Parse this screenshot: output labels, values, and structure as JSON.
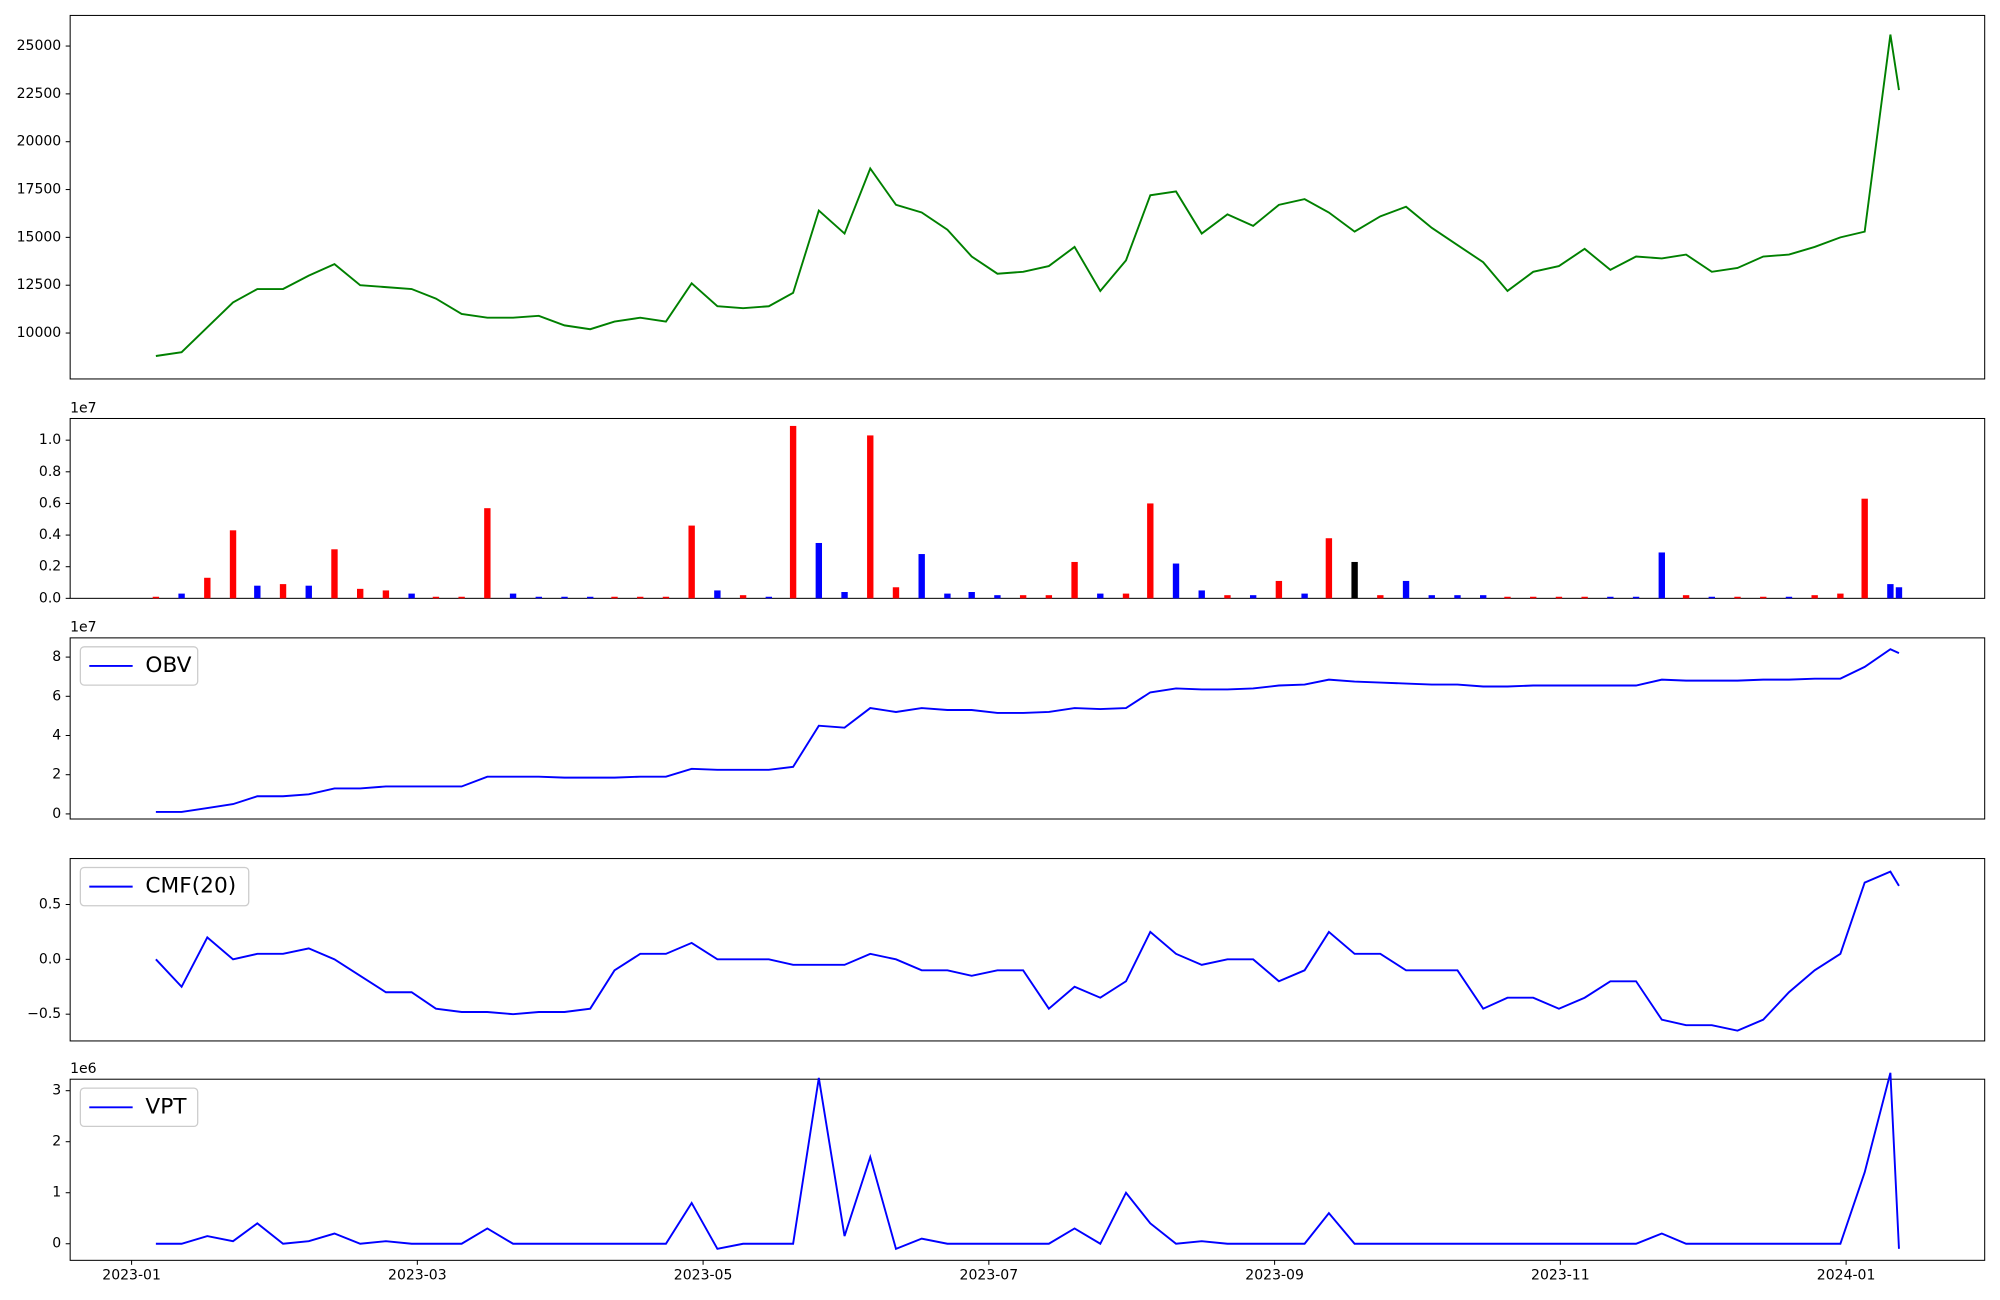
{
  "chart_data": [
    {
      "type": "line",
      "xlim": [
        -0.43,
        12.97
      ],
      "ylim": [
        7600,
        26600
      ],
      "yticks": [
        10000,
        12500,
        15000,
        17500,
        20000,
        22500,
        25000
      ],
      "x": [
        0.17,
        0.35,
        0.53,
        0.71,
        0.88,
        1.06,
        1.24,
        1.42,
        1.6,
        1.78,
        1.96,
        2.13,
        2.31,
        2.49,
        2.67,
        2.85,
        3.03,
        3.21,
        3.38,
        3.56,
        3.74,
        3.92,
        4.1,
        4.28,
        4.46,
        4.63,
        4.81,
        4.99,
        5.17,
        5.35,
        5.53,
        5.71,
        5.88,
        6.06,
        6.24,
        6.42,
        6.6,
        6.78,
        6.96,
        7.13,
        7.31,
        7.49,
        7.67,
        7.85,
        8.03,
        8.21,
        8.38,
        8.56,
        8.74,
        8.92,
        9.1,
        9.28,
        9.46,
        9.63,
        9.81,
        9.99,
        10.17,
        10.35,
        10.53,
        10.71,
        10.88,
        11.06,
        11.24,
        11.42,
        11.6,
        11.78,
        11.96,
        12.13,
        12.31,
        12.37
      ],
      "series": [
        {
          "color": "green",
          "values": [
            8800,
            9000,
            10300,
            11600,
            12300,
            12300,
            13000,
            13600,
            12500,
            12400,
            12300,
            11800,
            11000,
            10800,
            10800,
            10900,
            10400,
            10200,
            10600,
            10800,
            10600,
            12600,
            11400,
            11300,
            11400,
            12100,
            16400,
            15200,
            18600,
            16700,
            16300,
            15400,
            14000,
            13100,
            13200,
            13500,
            14500,
            12200,
            13800,
            17200,
            17400,
            15200,
            16200,
            15600,
            16700,
            17000,
            16300,
            15300,
            16100,
            16600,
            15500,
            14600,
            13700,
            12200,
            13200,
            13500,
            14400,
            13300,
            14000,
            13900,
            14100,
            13200,
            13400,
            14000,
            14100,
            14500,
            15000,
            15300,
            25600,
            22700
          ]
        }
      ]
    },
    {
      "type": "bar",
      "xlim": [
        -0.43,
        12.97
      ],
      "ylim": [
        0,
        11370000
      ],
      "offset_label": "1e7",
      "yticks": [
        {
          "value": 0,
          "label": "0.0"
        },
        {
          "value": 2000000,
          "label": "0.2"
        },
        {
          "value": 4000000,
          "label": "0.4"
        },
        {
          "value": 6000000,
          "label": "0.6"
        },
        {
          "value": 8000000,
          "label": "0.8"
        },
        {
          "value": 10000000,
          "label": "1.0"
        }
      ],
      "x": [
        0.17,
        0.35,
        0.53,
        0.71,
        0.88,
        1.06,
        1.24,
        1.42,
        1.6,
        1.78,
        1.96,
        2.13,
        2.31,
        2.49,
        2.67,
        2.85,
        3.03,
        3.21,
        3.38,
        3.56,
        3.74,
        3.92,
        4.1,
        4.28,
        4.46,
        4.63,
        4.81,
        4.99,
        5.17,
        5.35,
        5.53,
        5.71,
        5.88,
        6.06,
        6.24,
        6.42,
        6.6,
        6.78,
        6.96,
        7.13,
        7.31,
        7.49,
        7.67,
        7.85,
        8.03,
        8.21,
        8.38,
        8.56,
        8.74,
        8.92,
        9.1,
        9.28,
        9.46,
        9.63,
        9.81,
        9.99,
        10.17,
        10.35,
        10.53,
        10.71,
        10.88,
        11.06,
        11.24,
        11.42,
        11.6,
        11.78,
        11.96,
        12.13,
        12.31,
        12.37
      ],
      "values": [
        100000,
        300000,
        1300000,
        4300000,
        800000,
        900000,
        800000,
        3100000,
        600000,
        500000,
        300000,
        100000,
        100000,
        5700000,
        300000,
        100000,
        100000,
        100000,
        100000,
        100000,
        100000,
        4600000,
        500000,
        200000,
        100000,
        10900000,
        3500000,
        400000,
        10300000,
        700000,
        2800000,
        300000,
        400000,
        200000,
        200000,
        200000,
        2300000,
        300000,
        300000,
        6000000,
        2200000,
        500000,
        200000,
        200000,
        1100000,
        300000,
        3800000,
        2300000,
        200000,
        1100000,
        200000,
        200000,
        200000,
        100000,
        100000,
        100000,
        100000,
        100000,
        100000,
        2900000,
        200000,
        100000,
        100000,
        100000,
        100000,
        200000,
        300000,
        6300000,
        900000,
        700000
      ],
      "colors": [
        "red",
        "blue",
        "red",
        "red",
        "blue",
        "red",
        "blue",
        "red",
        "red",
        "red",
        "blue",
        "red",
        "red",
        "red",
        "blue",
        "blue",
        "blue",
        "blue",
        "red",
        "red",
        "red",
        "red",
        "blue",
        "red",
        "blue",
        "red",
        "blue",
        "blue",
        "red",
        "red",
        "blue",
        "blue",
        "blue",
        "blue",
        "red",
        "red",
        "red",
        "blue",
        "red",
        "red",
        "blue",
        "blue",
        "red",
        "blue",
        "red",
        "blue",
        "red",
        "black",
        "red",
        "blue",
        "blue",
        "blue",
        "blue",
        "red",
        "red",
        "red",
        "red",
        "blue",
        "blue",
        "blue",
        "red",
        "blue",
        "red",
        "red",
        "blue",
        "red",
        "red",
        "red",
        "blue",
        "blue"
      ]
    },
    {
      "type": "line",
      "xlim": [
        -0.43,
        12.97
      ],
      "ylim": [
        -2600000,
        89800000
      ],
      "offset_label": "1e7",
      "legend": "upper left",
      "yticks": [
        0,
        {
          "value": 20000000,
          "label": "2"
        },
        {
          "value": 40000000,
          "label": "4"
        },
        {
          "value": 60000000,
          "label": "6"
        },
        {
          "value": 80000000,
          "label": "8"
        }
      ],
      "x": [
        0.17,
        0.35,
        0.53,
        0.71,
        0.88,
        1.06,
        1.24,
        1.42,
        1.6,
        1.78,
        1.96,
        2.13,
        2.31,
        2.49,
        2.67,
        2.85,
        3.03,
        3.21,
        3.38,
        3.56,
        3.74,
        3.92,
        4.1,
        4.28,
        4.46,
        4.63,
        4.81,
        4.99,
        5.17,
        5.35,
        5.53,
        5.71,
        5.88,
        6.06,
        6.24,
        6.42,
        6.6,
        6.78,
        6.96,
        7.13,
        7.31,
        7.49,
        7.67,
        7.85,
        8.03,
        8.21,
        8.38,
        8.56,
        8.74,
        8.92,
        9.1,
        9.28,
        9.46,
        9.63,
        9.81,
        9.99,
        10.17,
        10.35,
        10.53,
        10.71,
        10.88,
        11.06,
        11.24,
        11.42,
        11.6,
        11.78,
        11.96,
        12.13,
        12.31,
        12.37
      ],
      "series": [
        {
          "name": "OBV",
          "color": "blue",
          "values": [
            1000000,
            1000000,
            3000000,
            5000000,
            9000000,
            9000000,
            10000000,
            13000000,
            13000000,
            14000000,
            14000000,
            14000000,
            14000000,
            19000000,
            19000000,
            19000000,
            18500000,
            18500000,
            18500000,
            19000000,
            19000000,
            23000000,
            22500000,
            22500000,
            22500000,
            24000000,
            45000000,
            44000000,
            54000000,
            52000000,
            54000000,
            53000000,
            53000000,
            51500000,
            51500000,
            52000000,
            54000000,
            53500000,
            54000000,
            62000000,
            64000000,
            63500000,
            63500000,
            64000000,
            65500000,
            66000000,
            68500000,
            67500000,
            67000000,
            66500000,
            66000000,
            66000000,
            65000000,
            65000000,
            65500000,
            65500000,
            65500000,
            65500000,
            65500000,
            68500000,
            68000000,
            68000000,
            68000000,
            68500000,
            68500000,
            69000000,
            69000000,
            75000000,
            84000000,
            82000000
          ]
        }
      ]
    },
    {
      "type": "line",
      "xlim": [
        -0.43,
        12.97
      ],
      "ylim": [
        -0.744,
        0.919
      ],
      "legend": "upper left",
      "yticks": [
        {
          "value": -0.5,
          "label": "−0.5"
        },
        {
          "value": 0,
          "label": "0.0"
        },
        0.5
      ],
      "x": [
        0.17,
        0.35,
        0.53,
        0.71,
        0.88,
        1.06,
        1.24,
        1.42,
        1.6,
        1.78,
        1.96,
        2.13,
        2.31,
        2.49,
        2.67,
        2.85,
        3.03,
        3.21,
        3.38,
        3.56,
        3.74,
        3.92,
        4.1,
        4.28,
        4.46,
        4.63,
        4.81,
        4.99,
        5.17,
        5.35,
        5.53,
        5.71,
        5.88,
        6.06,
        6.24,
        6.42,
        6.6,
        6.78,
        6.96,
        7.13,
        7.31,
        7.49,
        7.67,
        7.85,
        8.03,
        8.21,
        8.38,
        8.56,
        8.74,
        8.92,
        9.1,
        9.28,
        9.46,
        9.63,
        9.81,
        9.99,
        10.17,
        10.35,
        10.53,
        10.71,
        10.88,
        11.06,
        11.24,
        11.42,
        11.6,
        11.78,
        11.96,
        12.13,
        12.31,
        12.37
      ],
      "series": [
        {
          "name": "CMF(20)",
          "color": "blue",
          "values": [
            0,
            -0.25,
            0.2,
            0,
            0.05,
            0.05,
            0.1,
            0,
            -0.15,
            -0.3,
            -0.3,
            -0.45,
            -0.48,
            -0.48,
            -0.5,
            -0.48,
            -0.48,
            -0.45,
            -0.1,
            0.05,
            0.05,
            0.15,
            0,
            0,
            0,
            -0.05,
            -0.05,
            -0.05,
            0.05,
            0,
            -0.1,
            -0.1,
            -0.15,
            -0.1,
            -0.1,
            -0.45,
            -0.25,
            -0.35,
            -0.2,
            0.25,
            0.05,
            -0.05,
            0,
            0,
            -0.2,
            -0.1,
            0.25,
            0.05,
            0.05,
            -0.1,
            -0.1,
            -0.1,
            -0.45,
            -0.35,
            -0.35,
            -0.45,
            -0.35,
            -0.2,
            -0.2,
            -0.55,
            -0.6,
            -0.6,
            -0.65,
            -0.55,
            -0.3,
            -0.1,
            0.05,
            0.7,
            0.8,
            0.67
          ]
        }
      ]
    },
    {
      "type": "line",
      "xlim": [
        -0.43,
        12.97
      ],
      "ylim": [
        -325000,
        3225000
      ],
      "offset_label": "1e6",
      "legend": "upper left",
      "yticks": [
        0,
        {
          "value": 1000000,
          "label": "1"
        },
        {
          "value": 2000000,
          "label": "2"
        },
        {
          "value": 3000000,
          "label": "3"
        }
      ],
      "xticks": [
        {
          "value": 0,
          "label": "2023-01"
        },
        {
          "value": 2,
          "label": "2023-03"
        },
        {
          "value": 4,
          "label": "2023-05"
        },
        {
          "value": 6,
          "label": "2023-07"
        },
        {
          "value": 8,
          "label": "2023-09"
        },
        {
          "value": 10,
          "label": "2023-11"
        },
        {
          "value": 12,
          "label": "2024-01"
        }
      ],
      "x": [
        0.17,
        0.35,
        0.53,
        0.71,
        0.88,
        1.06,
        1.24,
        1.42,
        1.6,
        1.78,
        1.96,
        2.13,
        2.31,
        2.49,
        2.67,
        2.85,
        3.03,
        3.21,
        3.38,
        3.56,
        3.74,
        3.92,
        4.1,
        4.28,
        4.46,
        4.63,
        4.81,
        4.99,
        5.17,
        5.35,
        5.53,
        5.71,
        5.88,
        6.06,
        6.24,
        6.42,
        6.6,
        6.78,
        6.96,
        7.13,
        7.31,
        7.49,
        7.67,
        7.85,
        8.03,
        8.21,
        8.38,
        8.56,
        8.74,
        8.92,
        9.1,
        9.28,
        9.46,
        9.63,
        9.81,
        9.99,
        10.17,
        10.35,
        10.53,
        10.71,
        10.88,
        11.06,
        11.24,
        11.42,
        11.6,
        11.78,
        11.96,
        12.13,
        12.31,
        12.37
      ],
      "series": [
        {
          "name": "VPT",
          "color": "blue",
          "values": [
            0,
            0,
            150000,
            50000,
            400000,
            0,
            50000,
            200000,
            0,
            50000,
            0,
            0,
            0,
            300000,
            0,
            0,
            0,
            0,
            0,
            0,
            0,
            800000,
            -100000,
            0,
            0,
            0,
            3250000,
            150000,
            1700000,
            -100000,
            100000,
            0,
            0,
            0,
            0,
            0,
            300000,
            0,
            1000000,
            400000,
            0,
            50000,
            0,
            0,
            0,
            0,
            600000,
            0,
            0,
            0,
            0,
            0,
            0,
            0,
            0,
            0,
            0,
            0,
            0,
            200000,
            0,
            0,
            0,
            0,
            0,
            0,
            0,
            1400000,
            3350000,
            -100000
          ]
        }
      ]
    }
  ]
}
